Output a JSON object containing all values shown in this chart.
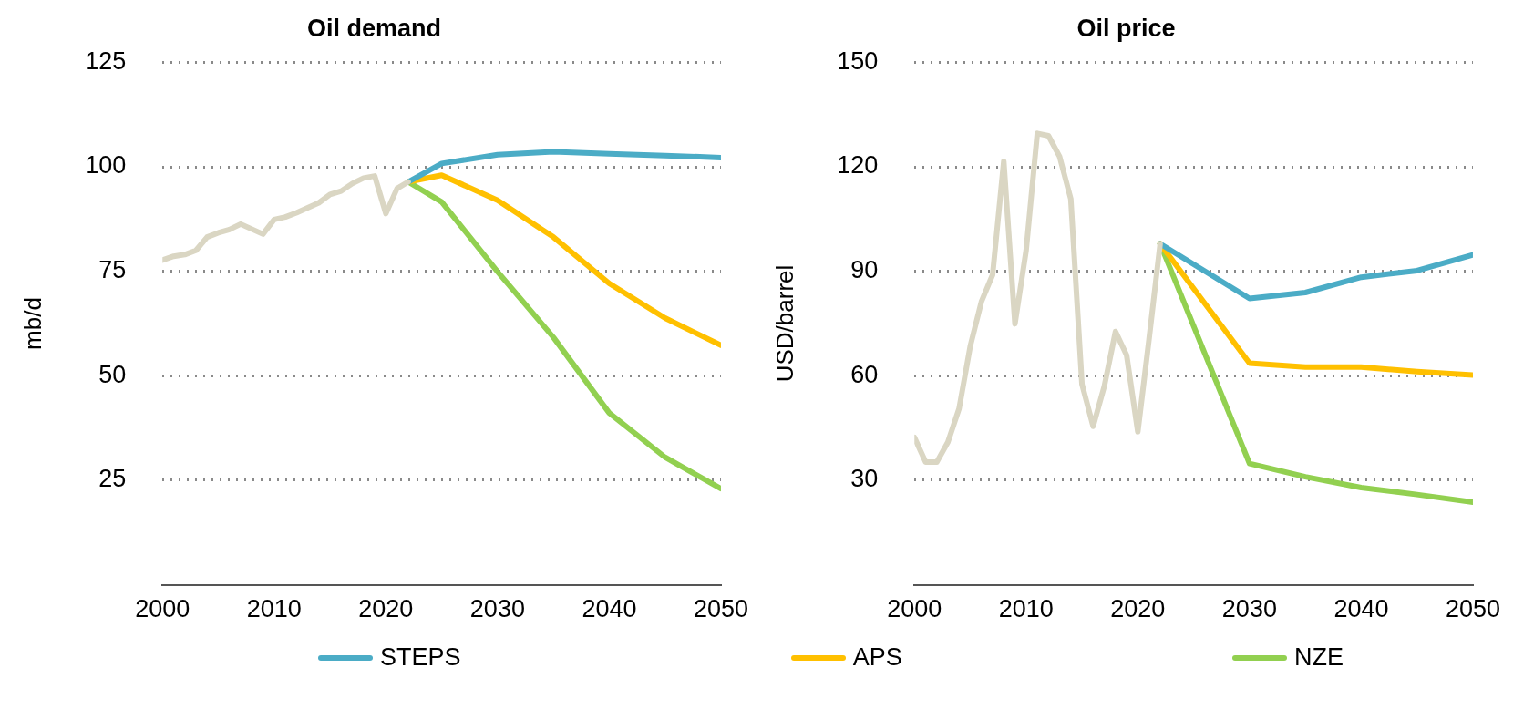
{
  "chart_data": [
    {
      "type": "line",
      "title": "Oil demand",
      "ylabel": "mb/d",
      "xlim": [
        2000,
        2050
      ],
      "xticks": [
        2000,
        2010,
        2020,
        2030,
        2040,
        2050
      ],
      "ylim": [
        0,
        125
      ],
      "yticks": [
        25,
        50,
        75,
        100,
        125
      ],
      "grid": "y",
      "legend": "bottom",
      "marker": "none",
      "line_style": "solid",
      "series": [
        {
          "color": "#dad6c3",
          "x": [
            2000,
            2001,
            2002,
            2003,
            2004,
            2005,
            2006,
            2007,
            2008,
            2009,
            2010,
            2011,
            2012,
            2013,
            2014,
            2015,
            2016,
            2017,
            2018,
            2019,
            2020,
            2021,
            2022
          ],
          "values": [
            77.7,
            78.6,
            79,
            80,
            83.2,
            84.2,
            85,
            86.3,
            85.1,
            83.9,
            87.4,
            88,
            89,
            90.2,
            91.4,
            93.4,
            94.2,
            96,
            97.3,
            97.8,
            88.8,
            94.8,
            96.4
          ]
        },
        {
          "name": "STEPS",
          "color": "#4bacc6",
          "x": [
            2022,
            2025,
            2030,
            2035,
            2040,
            2045,
            2050
          ],
          "values": [
            96.4,
            100.8,
            102.9,
            103.6,
            103.1,
            102.7,
            102.2
          ]
        },
        {
          "name": "APS",
          "color": "#ffc000",
          "x": [
            2022,
            2025,
            2030,
            2035,
            2040,
            2045,
            2050
          ],
          "values": [
            96.4,
            98,
            92,
            83.2,
            72.1,
            63.8,
            57.3
          ]
        },
        {
          "name": "NZE",
          "color": "#92d050",
          "x": [
            2022,
            2025,
            2030,
            2035,
            2040,
            2045,
            2050
          ],
          "values": [
            96.4,
            91.6,
            74.9,
            59.2,
            41.1,
            30.5,
            23
          ]
        }
      ]
    },
    {
      "type": "line",
      "title": "Oil price",
      "ylabel": "USD/barrel",
      "xlim": [
        2000,
        2050
      ],
      "xticks": [
        2000,
        2010,
        2020,
        2030,
        2040,
        2050
      ],
      "ylim": [
        0,
        150
      ],
      "yticks": [
        30,
        60,
        90,
        120,
        150
      ],
      "grid": "y",
      "legend": "bottom",
      "marker": "none",
      "line_style": "solid",
      "series": [
        {
          "color": "#dad6c3",
          "x": [
            2000,
            2001,
            2002,
            2003,
            2004,
            2005,
            2006,
            2007,
            2008,
            2009,
            2010,
            2011,
            2012,
            2013,
            2014,
            2015,
            2016,
            2017,
            2018,
            2019,
            2020,
            2021,
            2022
          ],
          "values": [
            42.3,
            35.2,
            35.2,
            41,
            50.6,
            68.5,
            81.3,
            89,
            121.6,
            74.9,
            96,
            129.6,
            128.9,
            122.9,
            110.8,
            57.6,
            45.5,
            57,
            72.7,
            65.9,
            43.9,
            70.4,
            97.9
          ]
        },
        {
          "name": "STEPS",
          "color": "#4bacc6",
          "x": [
            2022,
            2030,
            2035,
            2040,
            2045,
            2050
          ],
          "values": [
            97.9,
            82.2,
            83.9,
            88.3,
            90.2,
            94.7
          ]
        },
        {
          "name": "APS",
          "color": "#ffc000",
          "x": [
            2022,
            2030,
            2035,
            2040,
            2045,
            2050
          ],
          "values": [
            97.9,
            63.6,
            62.5,
            62.5,
            61.2,
            60.2
          ]
        },
        {
          "name": "NZE",
          "color": "#92d050",
          "x": [
            2022,
            2030,
            2035,
            2040,
            2045,
            2050
          ],
          "values": [
            97.9,
            34.8,
            31,
            27.9,
            25.9,
            23.7
          ]
        }
      ]
    }
  ]
}
